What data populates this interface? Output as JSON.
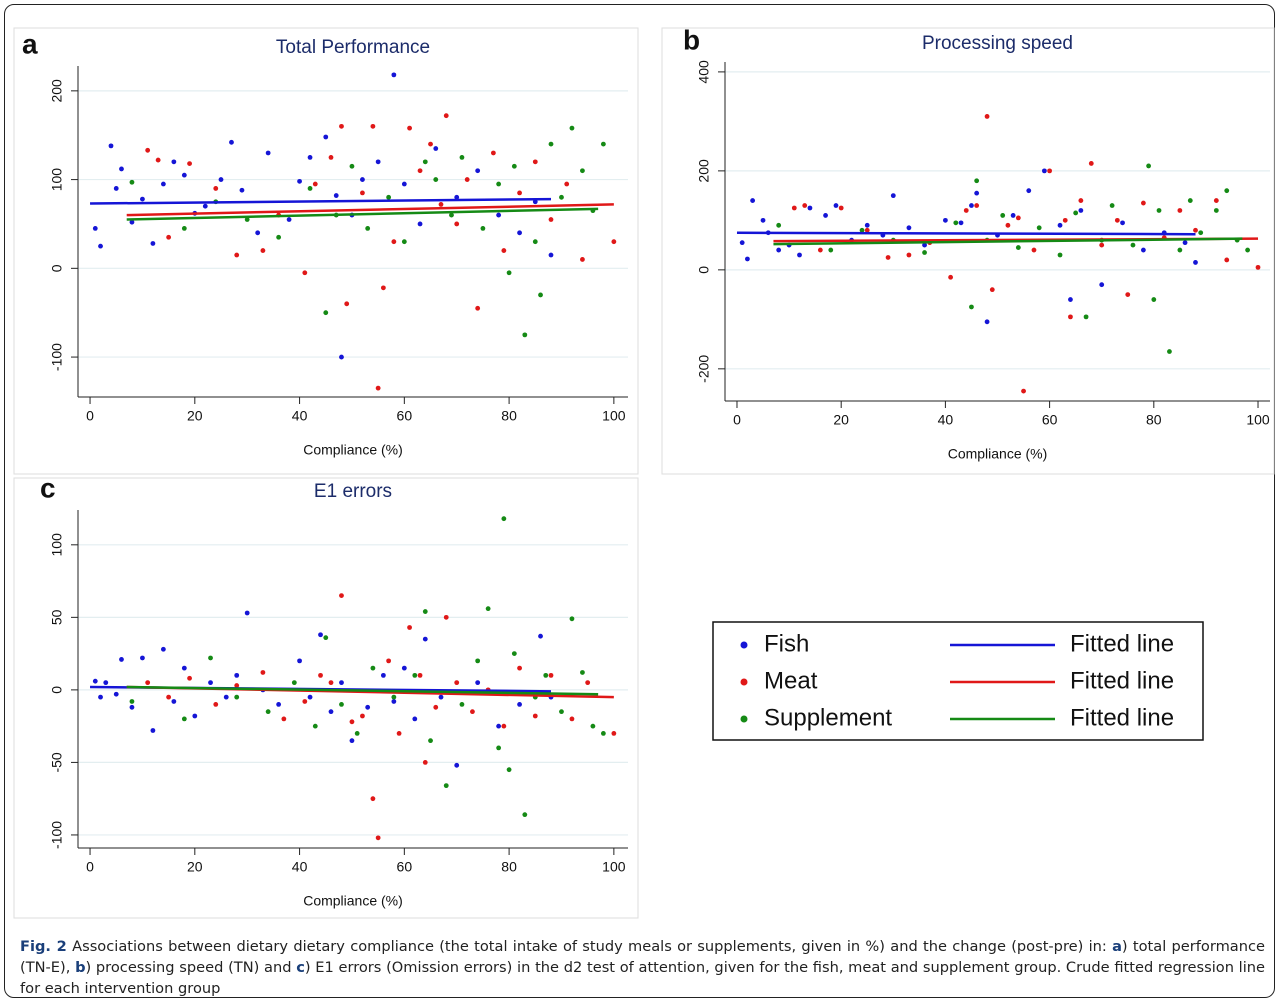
{
  "chart_data": [
    {
      "type": "scatter",
      "panel": "a",
      "title": "Total Performance",
      "xlabel": "Compliance (%)",
      "xlim": [
        -2.3,
        102.7
      ],
      "xticks": [
        0,
        20,
        40,
        60,
        80,
        100
      ],
      "ylim": [
        -145,
        228
      ],
      "yticks": [
        -100,
        0,
        100,
        200
      ],
      "grid": true,
      "series": [
        {
          "name": "Fish",
          "mode": "markers",
          "color": "#1515d6",
          "x": [
            1,
            2,
            4,
            5,
            6,
            8,
            10,
            12,
            14,
            16,
            18,
            20,
            22,
            25,
            27,
            29,
            32,
            34,
            38,
            40,
            42,
            45,
            47,
            48,
            50,
            52,
            55,
            58,
            60,
            63,
            66,
            70,
            74,
            78,
            82,
            85,
            88
          ],
          "values": [
            45,
            25,
            138,
            90,
            112,
            52,
            78,
            28,
            95,
            120,
            105,
            62,
            70,
            100,
            142,
            88,
            40,
            130,
            55,
            98,
            125,
            148,
            82,
            -100,
            60,
            100,
            120,
            218,
            95,
            50,
            135,
            80,
            110,
            60,
            40,
            75,
            15
          ]
        },
        {
          "name": "Meat",
          "mode": "markers",
          "color": "#e01818",
          "x": [
            11,
            13,
            15,
            19,
            24,
            28,
            33,
            36,
            41,
            43,
            46,
            48,
            49,
            52,
            54,
            55,
            56,
            58,
            61,
            63,
            65,
            67,
            68,
            70,
            72,
            74,
            77,
            79,
            82,
            85,
            88,
            91,
            94,
            100
          ],
          "values": [
            133,
            122,
            35,
            118,
            90,
            15,
            20,
            60,
            -5,
            95,
            125,
            160,
            -40,
            85,
            160,
            -135,
            -22,
            30,
            158,
            110,
            140,
            72,
            172,
            50,
            100,
            -45,
            130,
            20,
            85,
            120,
            55,
            95,
            10,
            30
          ]
        },
        {
          "name": "Supplement",
          "mode": "markers",
          "color": "#158a15",
          "x": [
            8,
            18,
            24,
            30,
            36,
            42,
            45,
            47,
            50,
            53,
            57,
            60,
            64,
            66,
            69,
            71,
            75,
            78,
            80,
            81,
            83,
            85,
            86,
            88,
            90,
            92,
            94,
            96,
            98
          ],
          "values": [
            97,
            45,
            75,
            55,
            35,
            90,
            -50,
            60,
            115,
            45,
            80,
            30,
            120,
            100,
            60,
            125,
            45,
            95,
            -5,
            115,
            -75,
            30,
            -30,
            140,
            80,
            158,
            110,
            65,
            140
          ]
        },
        {
          "name": "Fitted line",
          "mode": "line",
          "color": "#1515d6",
          "x": [
            0,
            88
          ],
          "values": [
            73,
            78
          ]
        },
        {
          "name": "Fitted line",
          "mode": "line",
          "color": "#e01818",
          "x": [
            7,
            100
          ],
          "values": [
            60,
            72
          ]
        },
        {
          "name": "Fitted line",
          "mode": "line",
          "color": "#158a15",
          "x": [
            7,
            97
          ],
          "values": [
            55,
            67
          ]
        }
      ]
    },
    {
      "type": "scatter",
      "panel": "b",
      "title": "Processing speed",
      "xlabel": "Compliance (%)",
      "xlim": [
        -2.3,
        102.3
      ],
      "xticks": [
        0,
        20,
        40,
        60,
        80,
        100
      ],
      "ylim": [
        -265,
        420
      ],
      "yticks": [
        -200,
        0,
        200,
        400
      ],
      "grid": true,
      "series": [
        {
          "mode": "markers",
          "color": "#1515d6",
          "x": [
            1,
            2,
            3,
            5,
            6,
            8,
            10,
            12,
            14,
            17,
            19,
            22,
            25,
            28,
            30,
            33,
            36,
            40,
            43,
            45,
            46,
            48,
            50,
            53,
            56,
            59,
            62,
            64,
            66,
            70,
            74,
            78,
            82,
            86,
            88
          ],
          "values": [
            55,
            22,
            140,
            100,
            75,
            40,
            50,
            30,
            125,
            110,
            130,
            60,
            90,
            70,
            150,
            85,
            50,
            100,
            95,
            130,
            155,
            -105,
            70,
            110,
            160,
            200,
            90,
            -60,
            120,
            -30,
            95,
            40,
            75,
            55,
            15
          ]
        },
        {
          "mode": "markers",
          "color": "#e01818",
          "x": [
            11,
            13,
            16,
            20,
            25,
            29,
            33,
            37,
            41,
            44,
            46,
            48,
            49,
            52,
            54,
            55,
            57,
            60,
            63,
            64,
            66,
            68,
            70,
            73,
            75,
            78,
            82,
            85,
            88,
            92,
            94,
            100
          ],
          "values": [
            125,
            130,
            40,
            125,
            80,
            25,
            30,
            55,
            -15,
            120,
            130,
            310,
            -40,
            90,
            105,
            -245,
            40,
            200,
            100,
            -95,
            140,
            215,
            50,
            100,
            -50,
            135,
            65,
            120,
            80,
            140,
            20,
            5
          ]
        },
        {
          "mode": "markers",
          "color": "#158a15",
          "x": [
            8,
            18,
            24,
            30,
            36,
            42,
            45,
            46,
            48,
            51,
            54,
            58,
            62,
            65,
            67,
            70,
            72,
            76,
            79,
            80,
            81,
            83,
            85,
            87,
            89,
            92,
            94,
            96,
            98
          ],
          "values": [
            90,
            40,
            80,
            60,
            35,
            95,
            -75,
            180,
            60,
            110,
            45,
            85,
            30,
            115,
            -95,
            60,
            130,
            50,
            210,
            -60,
            120,
            -165,
            40,
            140,
            75,
            120,
            160,
            60,
            40
          ]
        },
        {
          "mode": "line",
          "color": "#1515d6",
          "x": [
            0,
            88
          ],
          "values": [
            75,
            72
          ]
        },
        {
          "mode": "line",
          "color": "#e01818",
          "x": [
            7,
            100
          ],
          "values": [
            58,
            63
          ]
        },
        {
          "mode": "line",
          "color": "#158a15",
          "x": [
            7,
            97
          ],
          "values": [
            52,
            63
          ]
        }
      ]
    },
    {
      "type": "scatter",
      "panel": "c",
      "title": "E1 errors",
      "xlabel": "Compliance (%)",
      "xlim": [
        -2.3,
        102.7
      ],
      "xticks": [
        0,
        20,
        40,
        60,
        80,
        100
      ],
      "ylim": [
        -109,
        124
      ],
      "yticks": [
        -100,
        -50,
        0,
        50,
        100
      ],
      "grid": true,
      "series": [
        {
          "mode": "markers",
          "color": "#1515d6",
          "x": [
            1,
            2,
            3,
            5,
            6,
            8,
            10,
            12,
            14,
            16,
            18,
            20,
            23,
            26,
            28,
            30,
            33,
            36,
            40,
            42,
            44,
            46,
            48,
            50,
            53,
            56,
            58,
            60,
            62,
            64,
            67,
            70,
            74,
            78,
            82,
            86,
            88
          ],
          "values": [
            6,
            -5,
            5,
            -3,
            21,
            -12,
            22,
            -28,
            28,
            -8,
            15,
            -18,
            5,
            -5,
            10,
            53,
            0,
            -10,
            20,
            -5,
            38,
            -15,
            5,
            -35,
            -12,
            10,
            -8,
            15,
            -20,
            35,
            -5,
            -52,
            5,
            -25,
            -10,
            37,
            -5
          ]
        },
        {
          "mode": "markers",
          "color": "#e01818",
          "x": [
            11,
            15,
            19,
            24,
            28,
            33,
            37,
            41,
            44,
            46,
            48,
            50,
            52,
            54,
            55,
            57,
            59,
            61,
            63,
            64,
            66,
            68,
            70,
            73,
            76,
            79,
            82,
            85,
            88,
            92,
            95,
            100
          ],
          "values": [
            5,
            -5,
            8,
            -10,
            3,
            12,
            -20,
            -8,
            10,
            5,
            65,
            -22,
            -18,
            -75,
            -102,
            20,
            -30,
            43,
            10,
            -50,
            -12,
            50,
            5,
            -15,
            0,
            -25,
            15,
            -18,
            10,
            -20,
            5,
            -30
          ]
        },
        {
          "mode": "markers",
          "color": "#158a15",
          "x": [
            8,
            18,
            23,
            28,
            34,
            39,
            43,
            45,
            48,
            51,
            54,
            58,
            62,
            64,
            65,
            68,
            71,
            74,
            76,
            78,
            79,
            80,
            81,
            83,
            85,
            87,
            90,
            92,
            94,
            96,
            98
          ],
          "values": [
            -8,
            -20,
            22,
            -5,
            -15,
            5,
            -25,
            36,
            -10,
            -30,
            15,
            -5,
            10,
            54,
            -35,
            -66,
            -10,
            20,
            56,
            -40,
            118,
            -55,
            25,
            -86,
            -5,
            10,
            -15,
            49,
            12,
            -25,
            -30
          ]
        },
        {
          "mode": "line",
          "color": "#1515d6",
          "x": [
            0,
            88
          ],
          "values": [
            2,
            -1
          ]
        },
        {
          "mode": "line",
          "color": "#e01818",
          "x": [
            7,
            100
          ],
          "values": [
            2,
            -5
          ]
        },
        {
          "mode": "line",
          "color": "#158a15",
          "x": [
            7,
            97
          ],
          "values": [
            2,
            -3
          ]
        }
      ]
    }
  ],
  "caption": [
    {
      "text": "Fig. 2",
      "bold": true
    },
    {
      "text": " Associations between dietary dietary compliance (the total intake of study meals or supplements, given in %) and the change (post-pre) in: "
    },
    {
      "text": "a",
      "bold": true
    },
    {
      "text": ") total performance (TN-E), "
    },
    {
      "text": "b",
      "bold": true
    },
    {
      "text": ") processing speed (TN) and "
    },
    {
      "text": "c",
      "bold": true
    },
    {
      "text": ") E1 errors (Omission errors) in the d2 test of attention, given for the fish, meat and supplement group. Crude fitted regression line for each intervention group"
    }
  ]
}
